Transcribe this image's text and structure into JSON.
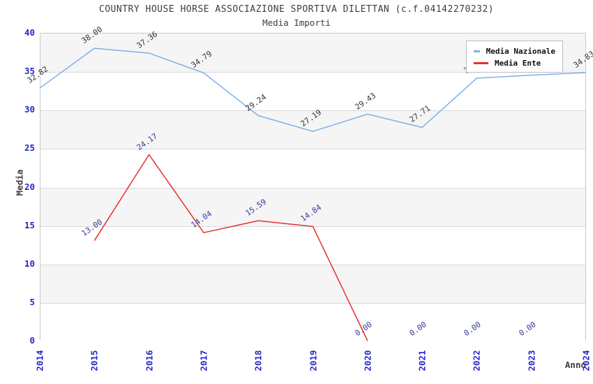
{
  "title": "COUNTRY HOUSE HORSE ASSOCIAZIONE SPORTIVA DILETTAN (c.f.04142270232)",
  "subtitle": "Media Importi",
  "axes": {
    "x_title": "Anno",
    "y_title": "Media",
    "x_ticks": [
      "2014",
      "2015",
      "2016",
      "2017",
      "2018",
      "2019",
      "2020",
      "2021",
      "2022",
      "2023",
      "2024"
    ],
    "y_ticks": [
      "0",
      "5",
      "10",
      "15",
      "20",
      "25",
      "30",
      "35",
      "40"
    ],
    "tick_color": "#2626cc",
    "axis_title_color": "#3d3d3d"
  },
  "legend": {
    "items": [
      {
        "label": "Media Nazionale",
        "color": "#7db0e8"
      },
      {
        "label": "Media Ente",
        "color": "#e62e2e"
      }
    ]
  },
  "colors": {
    "band_gray": "#f5f5f5",
    "gridline": "#d9d9d9",
    "plot_border": "#c8c8c8"
  },
  "chart_data": {
    "type": "line",
    "title": "COUNTRY HOUSE HORSE ASSOCIAZIONE SPORTIVA DILETTAN (c.f.04142270232)",
    "subtitle": "Media Importi",
    "xlabel": "Anno",
    "ylabel": "Media",
    "categories": [
      "2014",
      "2015",
      "2016",
      "2017",
      "2018",
      "2019",
      "2020",
      "2021",
      "2022",
      "2023",
      "2024"
    ],
    "ylim": [
      0,
      40
    ],
    "ytick_step": 5,
    "grid": "horizontal-bands-alternating",
    "legend_position": "top-right-inside",
    "series": [
      {
        "name": "Media Nazionale",
        "color": "#7db0e8",
        "label_color": "#333333",
        "points": [
          {
            "x": "2014",
            "y": 32.82,
            "label": "32.82",
            "on_line": true
          },
          {
            "x": "2015",
            "y": 38.0,
            "label": "38.00",
            "on_line": true
          },
          {
            "x": "2016",
            "y": 37.36,
            "label": "37.36",
            "on_line": true
          },
          {
            "x": "2017",
            "y": 34.79,
            "label": "34.79",
            "on_line": true
          },
          {
            "x": "2018",
            "y": 29.24,
            "label": "29.24",
            "on_line": true
          },
          {
            "x": "2019",
            "y": 27.19,
            "label": "27.19",
            "on_line": true
          },
          {
            "x": "2020",
            "y": 29.43,
            "label": "29.43",
            "on_line": true
          },
          {
            "x": "2021",
            "y": 27.71,
            "label": "27.71",
            "on_line": true
          },
          {
            "x": "2022",
            "y": 34.1,
            "label": "34.10",
            "on_line": true,
            "hidden_behind_legend": true,
            "estimated": true
          },
          {
            "x": "2023",
            "y": 34.5,
            "label": "34.50",
            "on_line": true,
            "hidden_behind_legend": true,
            "estimated": true
          },
          {
            "x": "2024",
            "y": 34.83,
            "label": "34.83",
            "on_line": true
          }
        ]
      },
      {
        "name": "Media Ente",
        "color": "#e62e2e",
        "label_color": "#39399b",
        "points": [
          {
            "x": "2015",
            "y": 13.0,
            "label": "13.00",
            "on_line": true
          },
          {
            "x": "2016",
            "y": 24.17,
            "label": "24.17",
            "on_line": true
          },
          {
            "x": "2017",
            "y": 14.04,
            "label": "14.04",
            "on_line": true
          },
          {
            "x": "2018",
            "y": 15.59,
            "label": "15.59",
            "on_line": true
          },
          {
            "x": "2019",
            "y": 14.84,
            "label": "14.84",
            "on_line": true
          },
          {
            "x": "2020",
            "y": 0.0,
            "label": "0.00",
            "on_line": true
          },
          {
            "x": "2021",
            "y": 0.0,
            "label": "0.00",
            "on_line": false
          },
          {
            "x": "2022",
            "y": 0.0,
            "label": "0.00",
            "on_line": false
          },
          {
            "x": "2023",
            "y": 0.0,
            "label": "0.00",
            "on_line": false
          }
        ]
      }
    ]
  }
}
